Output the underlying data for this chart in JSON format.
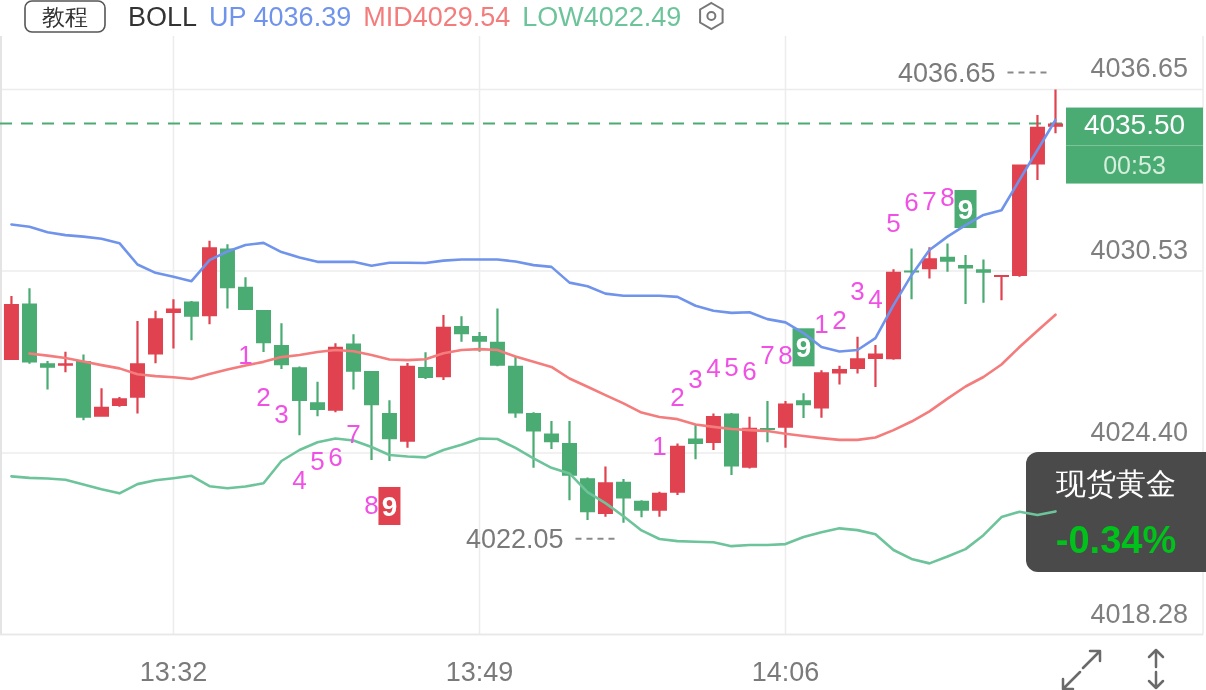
{
  "chart_data": {
    "type": "candlestick",
    "x": [
      13.3833,
      13.4,
      13.4167,
      13.4333,
      13.45,
      13.4667,
      13.4833,
      13.5,
      13.5167,
      13.5333,
      13.55,
      13.5667,
      13.5833,
      13.6,
      13.6167,
      13.6333,
      13.65,
      13.6667,
      13.6833,
      13.7,
      13.7167,
      13.7333,
      13.75,
      13.7667,
      13.7833,
      13.8,
      13.8167,
      13.8333,
      13.85,
      13.8667,
      13.8833,
      13.9,
      13.9167,
      13.9333,
      13.95,
      13.9667,
      13.9833,
      14.0,
      14.0167,
      14.0333,
      14.05,
      14.0667,
      14.0833,
      14.1,
      14.1167,
      14.1333,
      14.15,
      14.1667,
      14.1833,
      14.2,
      14.2167,
      14.2333,
      14.25,
      14.2667,
      14.2833,
      14.3,
      14.3167,
      14.3333,
      14.35
    ],
    "ohlc": [
      [
        4027.53,
        4029.69,
        4027.53,
        4029.42
      ],
      [
        4029.44,
        4029.95,
        4027.41,
        4027.45
      ],
      [
        4027.42,
        4027.5,
        4026.54,
        4027.27
      ],
      [
        4027.34,
        4027.81,
        4027.12,
        4027.42
      ],
      [
        4027.5,
        4027.72,
        4025.5,
        4025.59
      ],
      [
        4025.62,
        4026.58,
        4025.62,
        4025.96
      ],
      [
        4025.98,
        4026.29,
        4025.96,
        4026.24
      ],
      [
        4026.26,
        4028.85,
        4025.73,
        4027.42
      ],
      [
        4027.72,
        4029.19,
        4027.42,
        4028.94
      ],
      [
        4029.12,
        4029.58,
        4027.92,
        4029.27
      ],
      [
        4029.5,
        4029.52,
        4028.2,
        4028.99
      ],
      [
        4029.01,
        4031.55,
        4028.74,
        4031.33
      ],
      [
        4031.29,
        4031.43,
        4029.27,
        4029.95
      ],
      [
        4030.0,
        4030.32,
        4029.22,
        4029.22
      ],
      [
        4029.22,
        4029.22,
        4027.8,
        4028.1
      ],
      [
        4028.04,
        4028.77,
        4027.23,
        4027.36
      ],
      [
        4027.29,
        4027.31,
        4025.0,
        4026.15
      ],
      [
        4026.11,
        4026.8,
        4025.64,
        4025.85
      ],
      [
        4025.82,
        4028.1,
        4025.77,
        4027.98
      ],
      [
        4028.09,
        4028.4,
        4026.54,
        4027.14
      ],
      [
        4027.16,
        4027.16,
        4024.16,
        4026.01
      ],
      [
        4025.75,
        4026.18,
        4024.13,
        4024.86
      ],
      [
        4024.78,
        4027.43,
        4024.58,
        4027.34
      ],
      [
        4027.3,
        4027.79,
        4026.89,
        4026.93
      ],
      [
        4026.95,
        4029.05,
        4026.86,
        4028.65
      ],
      [
        4028.68,
        4029.01,
        4028.15,
        4028.4
      ],
      [
        4028.34,
        4028.48,
        4027.81,
        4028.15
      ],
      [
        4028.15,
        4029.27,
        4027.32,
        4027.34
      ],
      [
        4027.34,
        4027.63,
        4025.59,
        4025.73
      ],
      [
        4025.75,
        4025.77,
        4023.9,
        4025.12
      ],
      [
        4025.06,
        4025.48,
        4024.53,
        4024.76
      ],
      [
        4024.74,
        4025.48,
        4022.81,
        4023.63
      ],
      [
        4023.55,
        4023.57,
        4022.14,
        4022.4
      ],
      [
        4022.34,
        4023.94,
        4022.25,
        4023.41
      ],
      [
        4023.43,
        4023.52,
        4022.05,
        4022.87
      ],
      [
        4022.79,
        4022.81,
        4022.23,
        4022.45
      ],
      [
        4022.45,
        4023.09,
        4022.25,
        4023.06
      ],
      [
        4023.06,
        4024.72,
        4022.98,
        4024.64
      ],
      [
        4024.89,
        4025.34,
        4024.19,
        4024.7
      ],
      [
        4024.74,
        4025.73,
        4024.5,
        4025.65
      ],
      [
        4025.73,
        4025.75,
        4023.66,
        4023.94
      ],
      [
        4023.9,
        4025.62,
        4023.88,
        4025.25
      ],
      [
        4025.22,
        4026.15,
        4024.76,
        4025.19
      ],
      [
        4025.25,
        4026.15,
        4024.58,
        4026.07
      ],
      [
        4026.18,
        4026.41,
        4025.58,
        4026.01
      ],
      [
        4025.9,
        4027.19,
        4025.59,
        4027.12
      ],
      [
        4027.08,
        4027.34,
        4026.71,
        4027.23
      ],
      [
        4027.23,
        4028.32,
        4027.08,
        4027.59
      ],
      [
        4027.57,
        4028.04,
        4026.62,
        4027.75
      ],
      [
        4027.56,
        4030.59,
        4027.54,
        4030.51
      ],
      [
        4030.53,
        4031.29,
        4029.58,
        4030.5
      ],
      [
        4030.59,
        4031.33,
        4030.28,
        4030.96
      ],
      [
        4031.01,
        4031.46,
        4030.51,
        4030.84
      ],
      [
        4030.73,
        4031.07,
        4029.42,
        4030.62
      ],
      [
        4030.59,
        4030.92,
        4029.46,
        4030.47
      ],
      [
        4030.34,
        4030.39,
        4029.55,
        4030.39
      ],
      [
        4030.36,
        4034.12,
        4030.34,
        4034.12
      ],
      [
        4034.12,
        4035.79,
        4033.6,
        4035.39
      ],
      [
        4035.39,
        4036.65,
        4035.17,
        4035.5
      ]
    ],
    "colors": [
      "#e0424f",
      "#4aab73",
      "#4aab73",
      "#e0424f",
      "#4aab73",
      "#e0424f",
      "#e0424f",
      "#e0424f",
      "#e0424f",
      "#e0424f",
      "#4aab73",
      "#e0424f",
      "#4aab73",
      "#4aab73",
      "#4aab73",
      "#4aab73",
      "#4aab73",
      "#4aab73",
      "#e0424f",
      "#4aab73",
      "#4aab73",
      "#4aab73",
      "#e0424f",
      "#4aab73",
      "#e0424f",
      "#4aab73",
      "#4aab73",
      "#4aab73",
      "#4aab73",
      "#4aab73",
      "#4aab73",
      "#4aab73",
      "#4aab73",
      "#e0424f",
      "#4aab73",
      "#4aab73",
      "#e0424f",
      "#e0424f",
      "#4aab73",
      "#e0424f",
      "#4aab73",
      "#e0424f",
      "#4aab73",
      "#e0424f",
      "#4aab73",
      "#e0424f",
      "#e0424f",
      "#e0424f",
      "#e0424f",
      "#e0424f",
      "#4aab73",
      "#e0424f",
      "#4aab73",
      "#4aab73",
      "#4aab73",
      "#e0424f",
      "#e0424f",
      "#e0424f",
      "#e0424f"
    ],
    "series": [
      {
        "name": "UP 4036.39",
        "type": "line",
        "color": "#7094eb",
        "values": [
          4032.1,
          4032.02,
          4031.84,
          4031.74,
          4031.69,
          4031.62,
          4031.47,
          4030.75,
          4030.47,
          4030.34,
          4030.19,
          4030.9,
          4031.19,
          4031.41,
          4031.48,
          4031.17,
          4030.99,
          4030.84,
          4030.84,
          4030.84,
          4030.71,
          4030.81,
          4030.81,
          4030.8,
          4030.88,
          4030.92,
          4030.92,
          4030.92,
          4030.85,
          4030.73,
          4030.67,
          4030.14,
          4030.02,
          4029.77,
          4029.7,
          4029.7,
          4029.7,
          4029.66,
          4029.36,
          4029.19,
          4029.12,
          4029.14,
          4028.91,
          4028.8,
          4028.44,
          4027.97,
          4027.82,
          4027.87,
          4028.27,
          4029.38,
          4030.39,
          4031.24,
          4031.69,
          4032.08,
          4032.42,
          4032.58,
          4033.6,
          4034.61,
          4035.62
        ]
      },
      {
        "name": "MID4029.54",
        "type": "line",
        "color": "#f47c7c",
        "values": [
          null,
          4027.75,
          4027.68,
          4027.6,
          4027.48,
          4027.36,
          4027.25,
          4027.05,
          4026.99,
          4026.95,
          4026.89,
          4027.06,
          4027.21,
          4027.35,
          4027.47,
          4027.63,
          4027.7,
          4027.8,
          4027.87,
          4027.83,
          4027.7,
          4027.55,
          4027.53,
          4027.56,
          4027.76,
          4027.87,
          4027.9,
          4027.87,
          4027.65,
          4027.47,
          4027.3,
          4026.91,
          4026.63,
          4026.35,
          4026.07,
          4025.76,
          4025.61,
          4025.54,
          4025.36,
          4025.28,
          4025.21,
          4025.17,
          4025.14,
          4025.05,
          4024.97,
          4024.9,
          4024.84,
          4024.84,
          4024.92,
          4025.17,
          4025.46,
          4025.8,
          4026.23,
          4026.64,
          4026.96,
          4027.38,
          4027.97,
          4028.52,
          4029.06
        ]
      },
      {
        "name": "LOW4022.49",
        "type": "line",
        "color": "#6dc49a",
        "values": [
          4023.61,
          4023.56,
          4023.54,
          4023.5,
          4023.34,
          4023.18,
          4023.04,
          4023.35,
          4023.48,
          4023.55,
          4023.63,
          4023.28,
          4023.21,
          4023.27,
          4023.38,
          4024.13,
          4024.5,
          4024.76,
          4024.89,
          4024.82,
          4024.6,
          4024.33,
          4024.28,
          4024.25,
          4024.5,
          4024.68,
          4024.89,
          4024.87,
          4024.57,
          4024.22,
          4023.9,
          4023.71,
          4023.08,
          4022.71,
          4022.27,
          4021.79,
          4021.5,
          4021.43,
          4021.41,
          4021.39,
          4021.26,
          4021.3,
          4021.3,
          4021.33,
          4021.57,
          4021.73,
          4021.86,
          4021.8,
          4021.66,
          4021.13,
          4020.83,
          4020.68,
          4020.91,
          4021.16,
          4021.63,
          4022.24,
          4022.42,
          4022.31,
          4022.43
        ]
      }
    ],
    "xlim": [
      13.3727,
      14.4838
    ],
    "ylim": [
      4018.28,
      4038.45
    ],
    "xticks": [
      {
        "value": 13.5333,
        "label": "13:32"
      },
      {
        "value": 13.8167,
        "label": "13:49"
      },
      {
        "value": 14.1,
        "label": "14:06"
      }
    ],
    "yticks": [
      4018.28,
      {
        "value": 4024.4,
        "label": "4024.40"
      },
      4030.53,
      4036.65
    ],
    "grid": true,
    "legend": "top left",
    "legend_title": "BOLL",
    "ref_lines": [
      {
        "axis": "y",
        "value": 4035.5,
        "color": "#4aab73",
        "line_style": "dashed"
      }
    ],
    "annotations": [
      "教程",
      "现货黄金",
      "-0.34%",
      "4035.50",
      "00:53",
      {
        "text": "4036.65",
        "x": 14.35,
        "y": 4036.65
      },
      {
        "text": "4022.05",
        "x": 13.95,
        "y": 4022.05
      },
      {
        "text": "1",
        "x": 13.6,
        "y": 4029.22
      },
      {
        "text": "2",
        "x": 13.6167,
        "y": 4027.8
      },
      {
        "text": "3",
        "x": 13.6333,
        "y": 4027.23
      },
      {
        "text": "4",
        "x": 13.65,
        "y": 4025.0
      },
      {
        "text": "5",
        "x": 13.6667,
        "y": 4025.64
      },
      {
        "text": "6",
        "x": 13.6833,
        "y": 4025.77
      },
      {
        "text": "7",
        "x": 13.7,
        "y": 4026.54
      },
      {
        "text": "8",
        "x": 13.7167,
        "y": 4024.16
      },
      {
        "text": "9",
        "x": 13.7333,
        "y": 4024.13
      },
      {
        "text": "1",
        "x": 13.9833,
        "y": 4023.09
      },
      {
        "text": "2",
        "x": 14.0,
        "y": 4024.72
      },
      {
        "text": "3",
        "x": 14.0167,
        "y": 4025.34
      },
      {
        "text": "4",
        "x": 14.0333,
        "y": 4025.73
      },
      {
        "text": "5",
        "x": 14.05,
        "y": 4025.75
      },
      {
        "text": "6",
        "x": 14.0667,
        "y": 4025.62
      },
      {
        "text": "7",
        "x": 14.0833,
        "y": 4026.15
      },
      {
        "text": "8",
        "x": 14.1,
        "y": 4026.15
      },
      {
        "text": "9",
        "x": 14.1167,
        "y": 4026.41
      },
      {
        "text": "1",
        "x": 14.1333,
        "y": 4027.19
      },
      {
        "text": "2",
        "x": 14.15,
        "y": 4027.34
      },
      {
        "text": "3",
        "x": 14.1667,
        "y": 4028.32
      },
      {
        "text": "4",
        "x": 14.1833,
        "y": 4028.04
      },
      {
        "text": "5",
        "x": 14.2,
        "y": 4030.59
      },
      {
        "text": "6",
        "x": 14.2167,
        "y": 4031.29
      },
      {
        "text": "7",
        "x": 14.2333,
        "y": 4031.33
      },
      {
        "text": "8",
        "x": 14.25,
        "y": 4031.46
      },
      {
        "text": "9",
        "x": 14.2667,
        "y": 4031.07
      }
    ]
  }
}
